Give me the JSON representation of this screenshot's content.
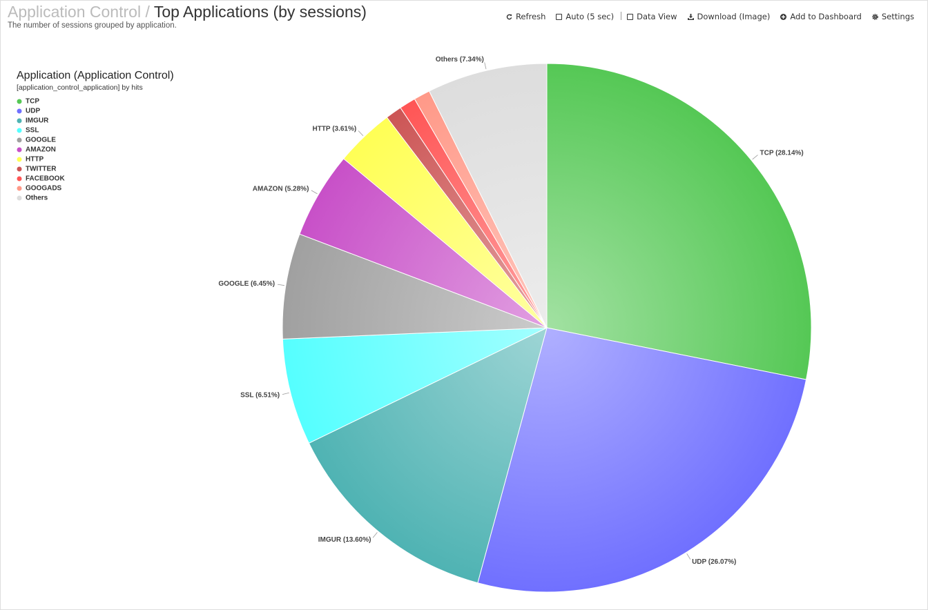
{
  "header": {
    "breadcrumb": "Application Control",
    "separator": "/",
    "title": "Top Applications (by sessions)",
    "subtitle": "The number of sessions grouped by application."
  },
  "toolbar": [
    "Refresh",
    "Auto (5 sec)",
    "Data View",
    "Download (Image)",
    "Add to Dashboard",
    "Settings"
  ],
  "chart_data": {
    "type": "pie",
    "legend_title": "Application (Application Control)",
    "legend_subtitle": "[application_control_application] by hits",
    "legend": "top-left",
    "categories": [
      "TCP",
      "UDP",
      "IMGUR",
      "SSL",
      "GOOGLE",
      "AMAZON",
      "HTTP",
      "TWITTER",
      "FACEBOOK",
      "GOOGADS",
      "Others"
    ],
    "values": [
      28.14,
      26.07,
      13.6,
      6.51,
      6.45,
      5.28,
      3.61,
      1.0,
      1.0,
      1.0,
      7.34
    ],
    "value_labels": [
      "TCP (28.14%)",
      "UDP (26.07%)",
      "IMGUR (13.60%)",
      "SSL (6.51%)",
      "GOOGLE (6.45%)",
      "AMAZON (5.28%)",
      "HTTP (3.61%)",
      null,
      null,
      null,
      "Others (7.34%)"
    ],
    "colors": [
      "#55c855",
      "#7070ff",
      "#4fb3b3",
      "#55ffff",
      "#a0a0a0",
      "#c850c8",
      "#ffff55",
      "#cc5555",
      "#ff5555",
      "#ff9988",
      "#dddddd"
    ]
  }
}
